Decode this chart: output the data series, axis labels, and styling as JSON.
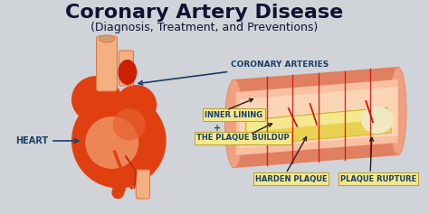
{
  "title": "Coronary Artery Disease",
  "subtitle": "(Diagnosis, Treatment, and Preventions)",
  "bg_color": "#d0d3d7",
  "title_color": "#111133",
  "subtitle_color": "#111133",
  "label_color": "#1a3f6a",
  "heart_main": "#e04010",
  "heart_mid": "#e86030",
  "heart_light": "#f09060",
  "heart_pale": "#f8c090",
  "vessel_color": "#e07850",
  "vessel_light": "#f4b080",
  "artery_outer": "#e08060",
  "artery_mid": "#f0a080",
  "artery_light": "#f8c0a0",
  "artery_inner": "#fad5b5",
  "plaque_yellow": "#e8d050",
  "plaque_light": "#f5e890",
  "red_line": "#cc1010",
  "label_box_bg": "#f5e88a",
  "label_box_edge": "#b8a030",
  "arrow_color": "#222222",
  "labels": {
    "heart": "HEART",
    "coronary": "CORONARY ARTERIES",
    "inner_lining": "INNER LINING",
    "plaque_buildup": "THE PLAQUE BUILDUP",
    "harden_plaque": "HARDEN PLAQUE",
    "plaque_rupture": "PLAQUE RUPTURE"
  },
  "title_fontsize": 16,
  "subtitle_fontsize": 9,
  "label_fontsize": 6
}
